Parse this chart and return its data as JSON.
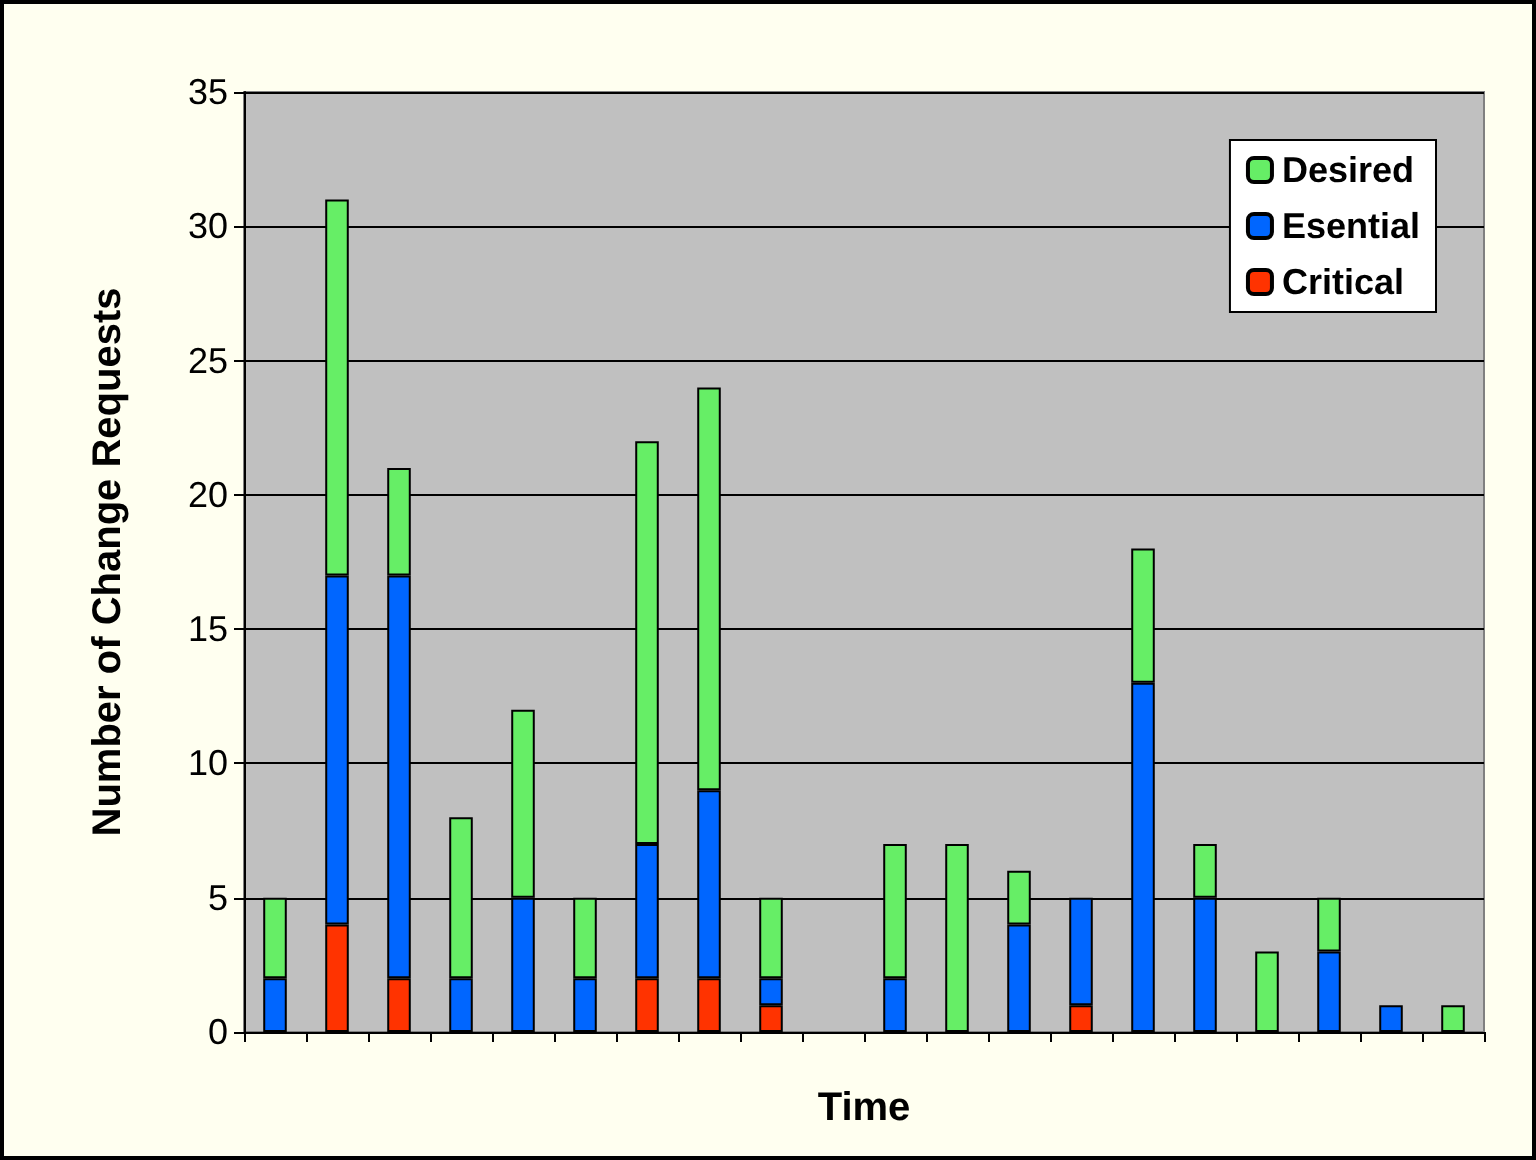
{
  "chart_data": {
    "type": "bar",
    "xlabel": "Time",
    "ylabel": "Number of Change Requests",
    "categories": [
      null,
      null,
      null,
      null,
      null,
      null,
      null,
      null,
      null,
      null,
      null,
      null,
      null,
      null,
      null,
      null,
      null,
      null,
      null,
      null
    ],
    "stacked": true,
    "ylim": [
      0,
      35
    ],
    "yticks": [
      0,
      5,
      10,
      15,
      20,
      25,
      30,
      35
    ],
    "grid": "y",
    "legend": "top right",
    "series": [
      {
        "name": "Critical",
        "color": "#ff3300",
        "values": [
          0,
          4,
          2,
          0,
          0,
          0,
          2,
          2,
          1,
          0,
          0,
          0,
          0,
          1,
          0,
          0,
          0,
          0,
          0,
          0
        ]
      },
      {
        "name": "Esential",
        "color": "#0066ff",
        "values": [
          2,
          13,
          15,
          2,
          5,
          2,
          5,
          7,
          1,
          0,
          2,
          0,
          4,
          4,
          13,
          5,
          0,
          3,
          1,
          0
        ]
      },
      {
        "name": "Desired",
        "color": "#66ee66",
        "values": [
          3,
          14,
          4,
          6,
          7,
          3,
          15,
          15,
          3,
          0,
          5,
          7,
          2,
          0,
          5,
          2,
          3,
          2,
          0,
          1
        ]
      }
    ]
  }
}
